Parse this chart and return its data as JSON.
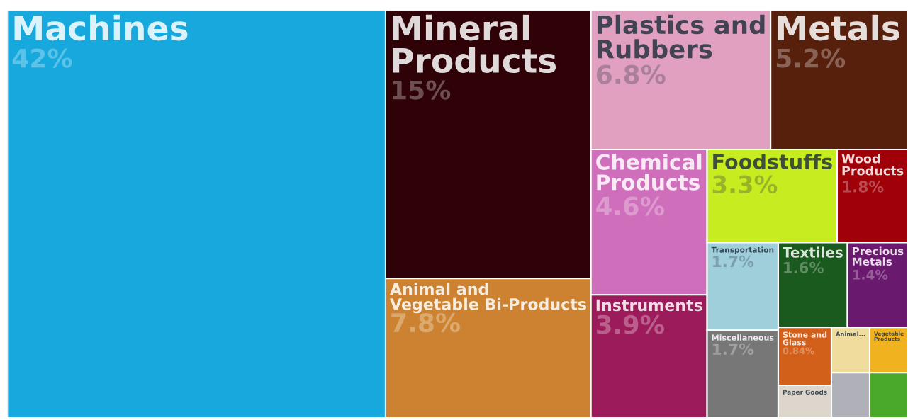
{
  "chart_data": {
    "type": "other",
    "categories": [
      "Machines",
      "Mineral Products",
      "Animal and Vegetable Bi-Products",
      "Plastics and Rubbers",
      "Metals",
      "Chemical Products",
      "Instruments",
      "Foodstuffs",
      "Wood Products",
      "Transportation",
      "Miscellaneous",
      "Textiles",
      "Precious Metals",
      "Stone and Glass",
      "Paper Goods",
      "Animal...",
      "Vegetable Products",
      null,
      null
    ],
    "values": [
      42,
      15,
      7.8,
      6.8,
      5.2,
      4.6,
      3.9,
      3.3,
      1.8,
      1.7,
      1.7,
      1.6,
      1.4,
      0.84,
      null,
      null,
      null,
      null,
      null
    ],
    "value_labels": [
      "42%",
      "15%",
      "7.8%",
      "6.8%",
      "5.2%",
      "4.6%",
      "3.9%",
      "3.3%",
      "1.8%",
      "1.7%",
      "1.7%",
      "1.6%",
      "1.4%",
      "0.84%",
      null,
      null,
      null,
      null,
      null
    ],
    "colors": [
      "#17a8dd",
      "#2e0206",
      "#cc8230",
      "#e2a0c0",
      "#57200c",
      "#cf6fbb",
      "#9c1b5a",
      "#c7ec1f",
      "#a00008",
      "#9fcfdb",
      "#777777",
      "#1b5a1f",
      "#6a1a6e",
      "#d2601a",
      "#dcd6cc",
      "#f0dc9c",
      "#f0b21e",
      "#b0b0b8",
      "#4aa82a"
    ]
  }
}
